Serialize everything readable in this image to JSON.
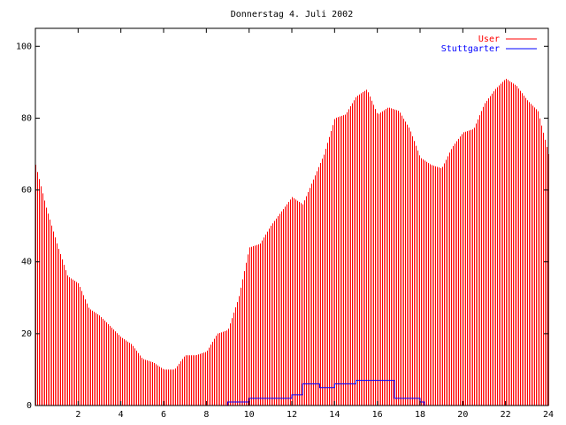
{
  "chart_data": {
    "type": "bar",
    "title": "Donnerstag 4. Juli 2002",
    "xlabel": "",
    "ylabel": "",
    "xlim": [
      0,
      24
    ],
    "ylim": [
      0,
      105
    ],
    "x_ticks": [
      {
        "value": 2,
        "label": "2"
      },
      {
        "value": 4,
        "label": "4"
      },
      {
        "value": 6,
        "label": "6"
      },
      {
        "value": 8,
        "label": "8"
      },
      {
        "value": 10,
        "label": "10"
      },
      {
        "value": 12,
        "label": "12"
      },
      {
        "value": 14,
        "label": "14"
      },
      {
        "value": 16,
        "label": "16"
      },
      {
        "value": 18,
        "label": "18"
      },
      {
        "value": 20,
        "label": "20"
      },
      {
        "value": 22,
        "label": "22"
      },
      {
        "value": 24,
        "label": "24"
      }
    ],
    "y_ticks": [
      {
        "value": 0,
        "label": "0"
      },
      {
        "value": 20,
        "label": "20"
      },
      {
        "value": 40,
        "label": "40"
      },
      {
        "value": 60,
        "label": "60"
      },
      {
        "value": 80,
        "label": "80"
      },
      {
        "value": 100,
        "label": "100"
      }
    ],
    "grid": false,
    "legend_position": "top-right",
    "series": [
      {
        "name": "User",
        "style": "impulses",
        "color": "#ff0000",
        "x": [
          0,
          0.5,
          1,
          1.5,
          2,
          2.5,
          3,
          3.5,
          4,
          4.5,
          5,
          5.5,
          6,
          6.5,
          7,
          7.5,
          8,
          8.5,
          9,
          9.5,
          10,
          10.5,
          11,
          11.5,
          12,
          12.5,
          13,
          13.5,
          14,
          14.5,
          15,
          15.5,
          16,
          16.5,
          17,
          17.5,
          18,
          18.5,
          19,
          19.5,
          20,
          20.5,
          21,
          21.5,
          22,
          22.5,
          23,
          23.5,
          24
        ],
        "values": [
          67,
          55,
          45,
          36,
          34,
          27,
          25,
          22,
          19,
          17,
          13,
          12,
          10,
          10,
          14,
          14,
          15,
          20,
          21,
          30,
          44,
          45,
          50,
          54,
          58,
          56,
          63,
          70,
          80,
          81,
          86,
          88,
          81,
          83,
          82,
          77,
          69,
          67,
          66,
          72,
          76,
          77,
          84,
          88,
          91,
          89,
          85,
          82,
          70
        ]
      },
      {
        "name": "Stuttgarter",
        "style": "steps",
        "color": "#0000ff",
        "x": [
          0,
          9,
          10,
          12,
          12.5,
          13.3,
          14,
          15,
          16.8,
          18,
          18.2,
          24
        ],
        "values": [
          0,
          1,
          2,
          3,
          6,
          5,
          6,
          7,
          2,
          1,
          0,
          0
        ]
      }
    ]
  }
}
